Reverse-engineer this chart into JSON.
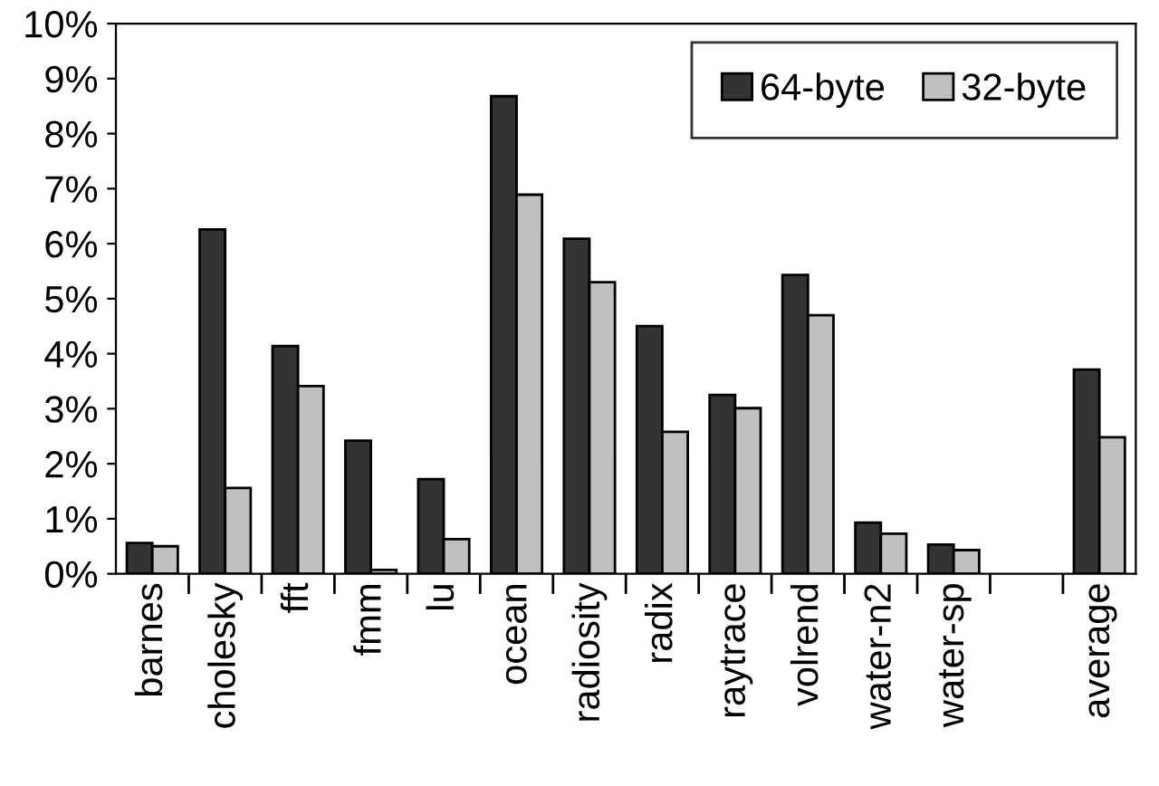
{
  "chart_data": {
    "type": "bar",
    "categories": [
      "barnes",
      "cholesky",
      "fft",
      "fmm",
      "lu",
      "ocean",
      "radiosity",
      "radix",
      "raytrace",
      "volrend",
      "water-n2",
      "water-sp",
      null,
      "average"
    ],
    "series": [
      {
        "name": "64-byte",
        "color": "#333333",
        "values": [
          0.56,
          6.26,
          4.14,
          2.42,
          1.72,
          8.68,
          6.09,
          4.5,
          3.25,
          5.43,
          0.93,
          0.53,
          null,
          3.71
        ]
      },
      {
        "name": "32-byte",
        "color": "#c0c0c0",
        "values": [
          0.5,
          1.56,
          3.41,
          0.07,
          0.63,
          6.89,
          5.3,
          2.58,
          3.01,
          4.7,
          0.73,
          0.43,
          null,
          2.48
        ]
      }
    ],
    "ylim": [
      0,
      10
    ],
    "yticks": [
      {
        "value": 0,
        "label": "0%"
      },
      {
        "value": 1,
        "label": "1%"
      },
      {
        "value": 2,
        "label": "2%"
      },
      {
        "value": 3,
        "label": "3%"
      },
      {
        "value": 4,
        "label": "4%"
      },
      {
        "value": 5,
        "label": "5%"
      },
      {
        "value": 6,
        "label": "6%"
      },
      {
        "value": 7,
        "label": "7%"
      },
      {
        "value": 8,
        "label": "8%"
      },
      {
        "value": 9,
        "label": "9%"
      },
      {
        "value": 10,
        "label": "10%"
      }
    ],
    "grid": false,
    "legend": "top right"
  }
}
